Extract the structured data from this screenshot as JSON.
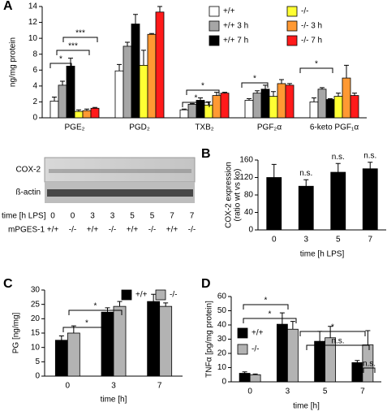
{
  "chart_data": [
    {
      "type": "bar",
      "panel_label": "A",
      "ylabel": "ng/mg protein",
      "categories": [
        "PGE₂",
        "PGD₂",
        "TXB₂",
        "PGF₂α",
        "6-keto PGF₁α"
      ],
      "series": [
        {
          "name": "+/+",
          "color": "#ffffff",
          "values": [
            2.1,
            5.9,
            1.0,
            2.2,
            2.0
          ],
          "errors": [
            0.5,
            0.8,
            0.1,
            0.2,
            0.5
          ]
        },
        {
          "name": "+/+  3 h",
          "color": "#a6a6a6",
          "values": [
            4.1,
            9.0,
            1.7,
            3.1,
            3.6
          ],
          "errors": [
            0.5,
            0.5,
            0.1,
            0.3,
            0.2
          ]
        },
        {
          "name": "+/+  7 h",
          "color": "#000000",
          "values": [
            6.5,
            11.8,
            2.2,
            3.6,
            2.3
          ],
          "errors": [
            1.0,
            1.2,
            0.3,
            0.5,
            0.1
          ]
        },
        {
          "name": "-/-",
          "color": "#ffff33",
          "values": [
            0.8,
            6.6,
            1.6,
            2.7,
            2.7
          ],
          "errors": [
            0.2,
            1.9,
            0.4,
            0.6,
            0.4
          ]
        },
        {
          "name": "-/-  3 h",
          "color": "#ff9933",
          "values": [
            0.9,
            10.5,
            2.8,
            4.3,
            5.0
          ],
          "errors": [
            0.2,
            0.1,
            0.4,
            0.5,
            1.6
          ]
        },
        {
          "name": "-/-  7 h",
          "color": "#ff1a1a",
          "values": [
            1.2,
            13.3,
            3.1,
            4.1,
            2.8
          ],
          "errors": [
            0.1,
            0.7,
            0.1,
            0.2,
            0.3
          ]
        }
      ],
      "ylim": [
        0,
        14
      ],
      "yticks": [
        0,
        2,
        4,
        6,
        8,
        10,
        12,
        14
      ],
      "legend": "upper right",
      "annotations": [
        "*",
        "***",
        "***",
        "*",
        "*",
        "*",
        "*"
      ]
    },
    {
      "type": "bar",
      "panel_label": "B",
      "ylabel": [
        "COX-2 expression",
        "(ratio wt vs ko)"
      ],
      "xlabel": "time [h LPS]",
      "categories": [
        "0",
        "3",
        "5",
        "7"
      ],
      "series": [
        {
          "color": "#000000",
          "values": [
            120,
            100,
            132,
            140
          ],
          "errors": [
            30,
            15,
            20,
            15
          ]
        }
      ],
      "ylim": [
        0,
        160
      ],
      "yticks": [
        0,
        40,
        80,
        120,
        160
      ],
      "annotations": [
        "n.s.",
        "n.s.",
        "n.s."
      ]
    },
    {
      "type": "bar",
      "panel_label": "C",
      "ylabel": "PG [ng/mg]",
      "xlabel": "time [h]",
      "categories": [
        "0",
        "3",
        "7"
      ],
      "series": [
        {
          "name": "+/+",
          "color": "#000000",
          "values": [
            12.5,
            22.3,
            26
          ],
          "errors": [
            1.5,
            1.5,
            2.5
          ]
        },
        {
          "name": "-/-",
          "color": "#b3b3b3",
          "values": [
            15,
            24.3,
            24.3
          ],
          "errors": [
            2.5,
            1.7,
            1.2
          ]
        }
      ],
      "ylim": [
        0,
        30
      ],
      "yticks": [
        0,
        5,
        10,
        15,
        20,
        25,
        30
      ],
      "legend": "top",
      "annotations": [
        "*",
        "*"
      ]
    },
    {
      "type": "bar",
      "panel_label": "D",
      "ylabel": "TNFα [pg/mg protein]",
      "xlabel": "time [h]",
      "categories": [
        "0",
        "3",
        "5",
        "7"
      ],
      "series": [
        {
          "name": "+/+",
          "color": "#000000",
          "values": [
            6,
            40.5,
            28.5,
            13.5
          ],
          "errors": [
            1,
            8,
            7,
            1.5
          ]
        },
        {
          "name": "-/-",
          "color": "#b3b3b3",
          "values": [
            5,
            37,
            31,
            26
          ],
          "errors": [
            0.5,
            5.5,
            8,
            10
          ]
        }
      ],
      "ylim": [
        0,
        60
      ],
      "yticks": [
        0,
        10,
        20,
        30,
        40,
        50,
        60
      ],
      "legend": "left",
      "annotations": [
        "*",
        "*",
        "*",
        "n.s.",
        "n.s."
      ]
    }
  ],
  "blot": {
    "rows": [
      "COX-2",
      "ß-actin"
    ],
    "time_label": "time [h LPS]",
    "times": [
      "0",
      "0",
      "3",
      "3",
      "5",
      "5",
      "7",
      "7"
    ],
    "genotype_label": "mPGES-1",
    "genotypes": [
      "+/+",
      "-/-",
      "+/+",
      "-/-",
      "+/+",
      "-/-",
      "+/+",
      "-/-"
    ]
  }
}
